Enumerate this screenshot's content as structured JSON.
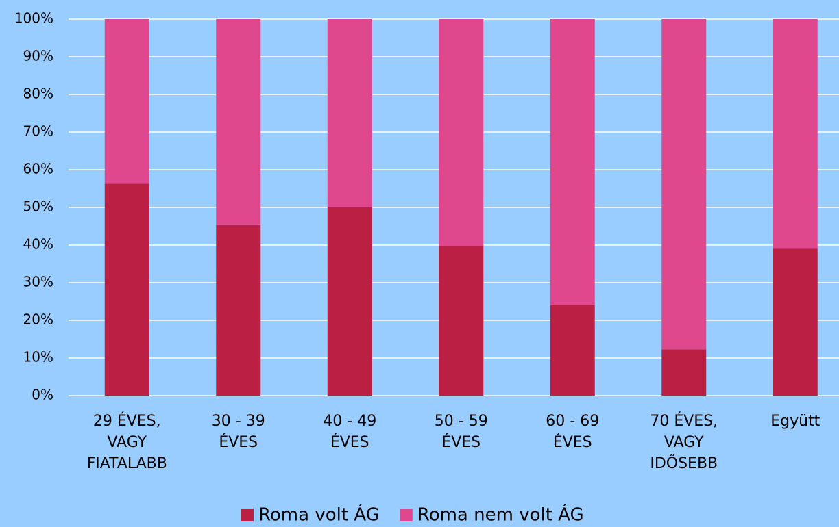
{
  "chart_data": {
    "type": "stacked_bar",
    "categories": [
      [
        "29 ÉVES,",
        "VAGY",
        "FIATALABB"
      ],
      [
        "30 - 39",
        "ÉVES"
      ],
      [
        "40 - 49",
        "ÉVES"
      ],
      [
        "50 - 59",
        "ÉVES"
      ],
      [
        "60 - 69",
        "ÉVES"
      ],
      [
        "70 ÉVES,",
        "VAGY",
        "IDŐSEBB"
      ],
      [
        "Együtt"
      ]
    ],
    "series": [
      {
        "name": "Roma volt ÁG",
        "color": "#bb2044",
        "values": [
          56.3,
          45.3,
          50,
          39.7,
          24,
          12.3,
          39
        ]
      },
      {
        "name": "Roma nem volt ÁG",
        "color": "#e0488e",
        "values": [
          43.7,
          54.7,
          50,
          60.3,
          76,
          87.7,
          61
        ]
      }
    ],
    "ylim": [
      0,
      100
    ],
    "yticks": [
      {
        "value": 0,
        "label": "0%"
      },
      {
        "value": 10,
        "label": "10%"
      },
      {
        "value": 20,
        "label": "20%"
      },
      {
        "value": 30,
        "label": "30%"
      },
      {
        "value": 40,
        "label": "40%"
      },
      {
        "value": 50,
        "label": "50%"
      },
      {
        "value": 60,
        "label": "60%"
      },
      {
        "value": 70,
        "label": "70%"
      },
      {
        "value": 80,
        "label": "80%"
      },
      {
        "value": 90,
        "label": "90%"
      },
      {
        "value": 100,
        "label": "100%"
      }
    ],
    "grid": true,
    "legend": "bottom"
  }
}
